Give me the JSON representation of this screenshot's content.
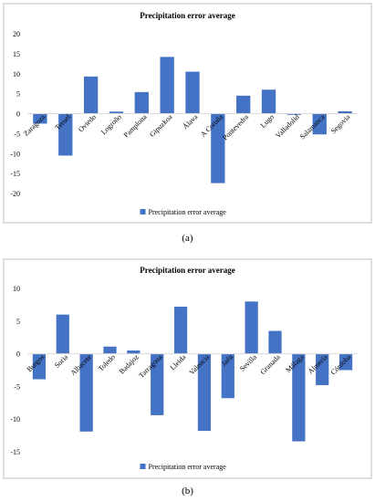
{
  "colors": {
    "bar": "#4472C4",
    "axis": "#d9d9d9",
    "frame": "#bfbfbf",
    "text": "#000000"
  },
  "chart_data": [
    {
      "type": "bar",
      "title": "Precipitation error average",
      "legend": "Precipitation error average",
      "legend_position": "bottom",
      "grid": false,
      "caption": "(a)",
      "ylim": [
        -20,
        20
      ],
      "yticks": [
        20,
        15,
        10,
        5,
        0,
        -5,
        -10,
        -15,
        -20
      ],
      "categories": [
        "Zaragoza",
        "Teruel",
        "Oviedo",
        "Logroño",
        "Pamplona",
        "Gipuzkoa",
        "Álava",
        "A Coruña",
        "Pontevedra",
        "Lugo",
        "Valladolid",
        "Salamanca",
        "Segovia"
      ],
      "values": [
        -2.5,
        -10.5,
        9.3,
        0.5,
        5.4,
        14.2,
        10.5,
        -17.4,
        4.5,
        6.0,
        -0.3,
        -5.2,
        0.6
      ]
    },
    {
      "type": "bar",
      "title": "Precipitation error average",
      "legend": "Precipitation error average",
      "legend_position": "bottom",
      "grid": false,
      "caption": "(b)",
      "ylim": [
        -15,
        10
      ],
      "yticks": [
        10,
        5,
        0,
        -5,
        -10,
        -15
      ],
      "categories": [
        "Burgos",
        "Soria",
        "Albacete",
        "Toledo",
        "Badajoz",
        "Tarragona",
        "Lleida",
        "Valencia",
        "Jaén",
        "Sevilla",
        "Granada",
        "Málaga",
        "Almería",
        "Córdoba"
      ],
      "values": [
        -3.9,
        6.0,
        -11.9,
        1.1,
        0.5,
        -9.4,
        7.2,
        -11.8,
        -6.8,
        8.0,
        3.5,
        -13.4,
        -4.8,
        -2.5
      ]
    }
  ]
}
